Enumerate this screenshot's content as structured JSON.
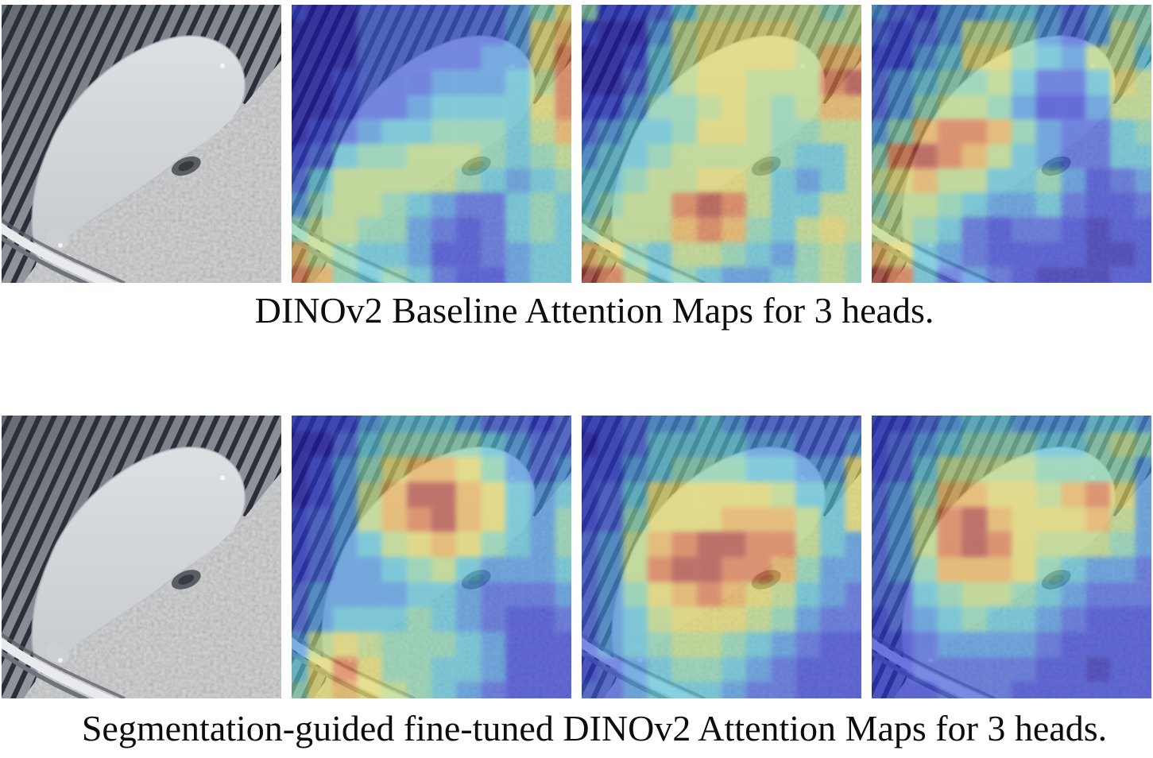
{
  "figure": {
    "background": "#ffffff",
    "text_color": "#0d0d0d",
    "grid_size": 12,
    "heatmap_colormap": [
      "#1a12ae",
      "#2531d4",
      "#3a55dd",
      "#3f8fe0",
      "#53c2d8",
      "#84d5ac",
      "#bcdc7d",
      "#e7da5e",
      "#eeae49",
      "#e06f39",
      "#b3392c"
    ],
    "rows": [
      {
        "name": "baseline",
        "caption": "DINOv2 Baseline Attention Maps for 3 heads.",
        "panels": [
          {
            "kind": "photo",
            "name": "input-frame"
          },
          {
            "kind": "attention",
            "name": "head-1",
            "grid": [
              "100222222357",
              "000222222378",
              "000222223379",
              "001222333469",
              "001223444479",
              "012344555468",
              "124556665456",
              "246666654345",
              "356654322454",
              "566553212454",
              "865443112344",
              "985454211344"
            ]
          },
          {
            "kind": "attention",
            "name": "head-2",
            "grid": [
              "511246666656",
              "100367777666",
              "001467777688",
              "00246776669a",
              "113556765688",
              "234457765566",
              "344566665446",
              "445667764346",
              "45669a964466",
              "566689854676",
              "875466543565",
              "a96454334565"
            ]
          },
          {
            "kind": "attention",
            "name": "head-3",
            "grid": [
              "321334432355",
              "212366532365",
              "113477543664",
              "234556422476",
              "235665311366",
              "358998532245",
              "59a986432244",
              "678664453123",
              "566543342112",
              "665421221011",
              "874321111001",
              "a94232100011"
            ]
          }
        ]
      },
      {
        "name": "finetuned",
        "caption": "Segmentation-guided fine-tuned DINOv2 Attention Maps for 3 heads.",
        "panels": [
          {
            "kind": "photo",
            "name": "input-frame"
          },
          {
            "kind": "attention",
            "name": "head-1",
            "grid": [
              "111344432212",
              "002455554322",
              "013578875323",
              "01368aa87434",
              "123689a87435",
              "123467875435",
              "123345643334",
              "233334432223",
              "234445432112",
              "367655543111",
              "479755443111",
              "578765432111"
            ]
          },
          {
            "kind": "attention",
            "name": "head-2",
            "grid": [
              "112334322222",
              "012444433223",
              "113455544337",
              "124777776447",
              "125777888647",
              "23689aa99643",
              "2369aa998533",
              "235789876432",
              "234677765322",
              "234566543211",
              "123455432111",
              "223444322111"
            ]
          },
          {
            "kind": "attention",
            "name": "head-3",
            "grid": [
              "112344333443",
              "123455544565",
              "124666655553",
              "235887768973",
              "2369a8777863",
              "2369a9766653",
              "235888754332",
              "224566543222",
              "123454432111",
              "112333321111",
              "112222211011",
              "111222111111"
            ]
          }
        ]
      }
    ]
  }
}
